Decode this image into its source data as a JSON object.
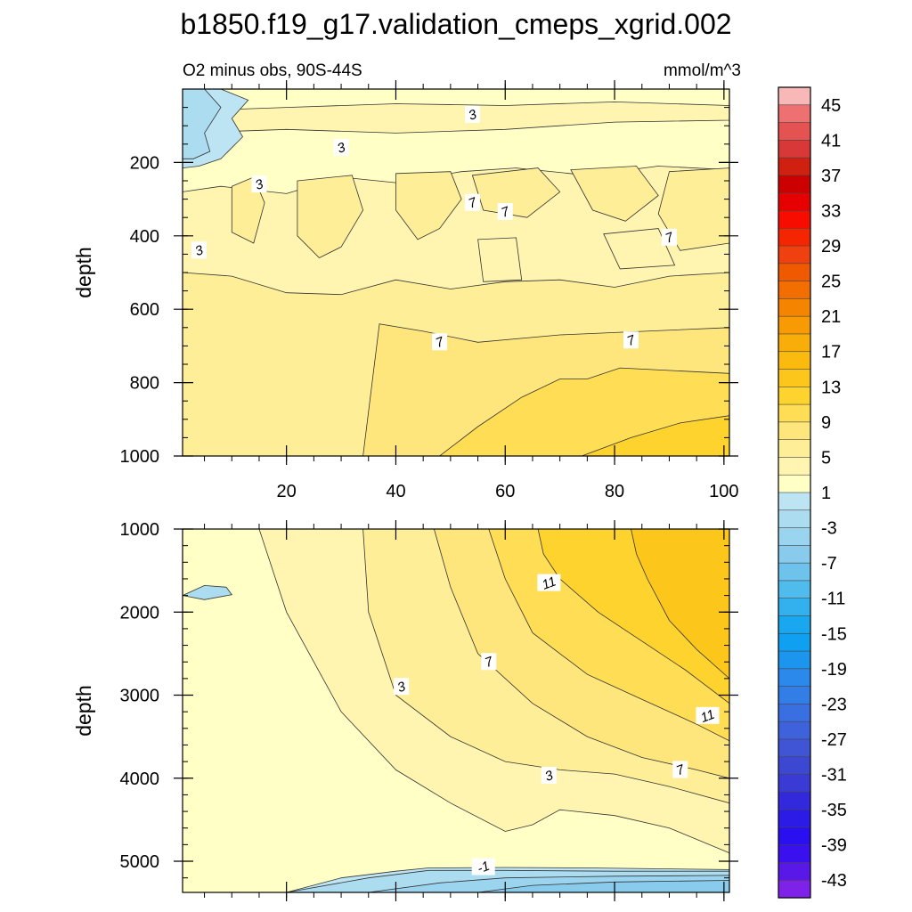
{
  "title": "b1850.f19_g17.validation_cmeps_xgrid.002",
  "colors": {
    "background": "#ffffff",
    "positive_levels": [
      "#ffffc6",
      "#fff5b0",
      "#ffee98",
      "#ffe67c",
      "#ffdd55",
      "#ffd32e",
      "#fcc71a",
      "#fbbb0e",
      "#f9ad08",
      "#f89a04",
      "#f58500",
      "#f26e00",
      "#ef5a00",
      "#f04010",
      "#f52500",
      "#f80c00",
      "#e60000",
      "#cc0000",
      "#d02010",
      "#d83838",
      "#e45252",
      "#ee7070",
      "#f8b8b8"
    ],
    "negative_levels": [
      "#bde4f2",
      "#acdcf0",
      "#9bd4ee",
      "#89cbec",
      "#6ec3ec",
      "#50bbed",
      "#32b1ee",
      "#19a8f0",
      "#0fa0f2",
      "#1b95ee",
      "#2a89ea",
      "#327ee6",
      "#3a6fe2",
      "#3e62dc",
      "#3f55d6",
      "#3c48d2",
      "#3a3ad4",
      "#3329dc",
      "#2c1ae6",
      "#2a10f0",
      "#3a10ee",
      "#5a18e8",
      "#7e22ea"
    ]
  },
  "chart_data": [
    {
      "type": "contour",
      "panel": "upper",
      "left_label": "O2 minus obs, 90S-44S",
      "right_label": "mmol/m^3",
      "xlabel": "",
      "ylabel": "depth",
      "xlim": [
        1,
        101
      ],
      "ylim": [
        0,
        1000
      ],
      "y_inverted": true,
      "x_ticks": [
        20,
        40,
        60,
        80,
        100
      ],
      "y_ticks": [
        200,
        400,
        600,
        800,
        1000
      ],
      "y_minor_step": 50,
      "x_minor_step": 5,
      "grid": false,
      "regions": [
        {
          "level": 1,
          "points": [
            [
              1,
              0
            ],
            [
              101,
              0
            ],
            [
              101,
              1000
            ],
            [
              1,
              1000
            ]
          ]
        },
        {
          "level": 3,
          "points": [
            [
              1,
              280
            ],
            [
              8,
              265
            ],
            [
              20,
              285
            ],
            [
              30,
              240
            ],
            [
              40,
              255
            ],
            [
              52,
              225
            ],
            [
              62,
              215
            ],
            [
              75,
              235
            ],
            [
              88,
              210
            ],
            [
              101,
              220
            ],
            [
              101,
              980
            ],
            [
              1,
              980
            ]
          ]
        },
        {
          "level": 5,
          "points": [
            [
              1,
              500
            ],
            [
              10,
              510
            ],
            [
              20,
              555
            ],
            [
              30,
              560
            ],
            [
              40,
              520
            ],
            [
              50,
              545
            ],
            [
              60,
              525
            ],
            [
              70,
              520
            ],
            [
              80,
              540
            ],
            [
              90,
              510
            ],
            [
              101,
              500
            ],
            [
              101,
              1000
            ],
            [
              1,
              1000
            ]
          ]
        },
        {
          "level": 7,
          "points": [
            [
              34,
              1000
            ],
            [
              37,
              640
            ],
            [
              45,
              660
            ],
            [
              55,
              690
            ],
            [
              70,
              670
            ],
            [
              101,
              650
            ],
            [
              101,
              1000
            ]
          ]
        },
        {
          "level": 9,
          "points": [
            [
              48,
              1000
            ],
            [
              55,
              920
            ],
            [
              63,
              840
            ],
            [
              70,
              790
            ],
            [
              75,
              790
            ],
            [
              81,
              760
            ],
            [
              101,
              775
            ],
            [
              101,
              1000
            ]
          ]
        },
        {
          "level": 11,
          "points": [
            [
              74,
              1000
            ],
            [
              83,
              950
            ],
            [
              92,
              910
            ],
            [
              101,
              890
            ],
            [
              101,
              1000
            ]
          ]
        },
        {
          "level": 5,
          "points": [
            [
              10,
              265
            ],
            [
              14,
              240
            ],
            [
              16,
              310
            ],
            [
              14,
              420
            ],
            [
              10,
              390
            ]
          ]
        },
        {
          "level": 5,
          "points": [
            [
              22,
              250
            ],
            [
              32,
              235
            ],
            [
              34,
              330
            ],
            [
              30,
              430
            ],
            [
              26,
              460
            ],
            [
              22,
              400
            ]
          ]
        },
        {
          "level": 5,
          "points": [
            [
              40,
              230
            ],
            [
              50,
              225
            ],
            [
              52,
              300
            ],
            [
              48,
              380
            ],
            [
              44,
              410
            ],
            [
              40,
              330
            ]
          ]
        },
        {
          "level": 5,
          "points": [
            [
              54,
              235
            ],
            [
              66,
              215
            ],
            [
              70,
              280
            ],
            [
              64,
              350
            ],
            [
              56,
              330
            ]
          ]
        },
        {
          "level": 5,
          "points": [
            [
              72,
              220
            ],
            [
              84,
              210
            ],
            [
              88,
              290
            ],
            [
              82,
              360
            ],
            [
              76,
              330
            ]
          ]
        },
        {
          "level": 5,
          "points": [
            [
              90,
              225
            ],
            [
              101,
              215
            ],
            [
              101,
              420
            ],
            [
              92,
              440
            ],
            [
              88,
              340
            ]
          ]
        },
        {
          "level": 3,
          "points": [
            [
              55,
              410
            ],
            [
              62,
              405
            ],
            [
              63,
              520
            ],
            [
              56,
              525
            ]
          ]
        },
        {
          "level": 3,
          "points": [
            [
              78,
              395
            ],
            [
              88,
              380
            ],
            [
              91,
              480
            ],
            [
              81,
              490
            ]
          ]
        },
        {
          "level": 3,
          "points": [
            [
              1,
              60
            ],
            [
              20,
              50
            ],
            [
              40,
              40
            ],
            [
              60,
              45
            ],
            [
              80,
              35
            ],
            [
              101,
              45
            ],
            [
              101,
              85
            ],
            [
              80,
              90
            ],
            [
              60,
              110
            ],
            [
              40,
              120
            ],
            [
              20,
              110
            ],
            [
              1,
              120
            ]
          ]
        },
        {
          "level": -1,
          "points": [
            [
              1,
              0
            ],
            [
              8,
              0
            ],
            [
              13,
              30
            ],
            [
              10,
              80
            ],
            [
              12,
              130
            ],
            [
              8,
              190
            ],
            [
              4,
              210
            ],
            [
              1,
              215
            ]
          ]
        },
        {
          "level": -3,
          "points": [
            [
              1,
              0
            ],
            [
              5,
              0
            ],
            [
              8,
              50
            ],
            [
              5,
              120
            ],
            [
              6,
              170
            ],
            [
              3,
              190
            ],
            [
              1,
              190
            ]
          ]
        }
      ],
      "contour_labels": [
        {
          "x": 54,
          "y": 70,
          "text": "3"
        },
        {
          "x": 30,
          "y": 160,
          "text": "3"
        },
        {
          "x": 15,
          "y": 260,
          "text": "3"
        },
        {
          "x": 4,
          "y": 440,
          "text": "3"
        },
        {
          "x": 54,
          "y": 310,
          "text": "7"
        },
        {
          "x": 60,
          "y": 335,
          "text": "7"
        },
        {
          "x": 90,
          "y": 405,
          "text": "7"
        },
        {
          "x": 48,
          "y": 690,
          "text": "7"
        },
        {
          "x": 83,
          "y": 685,
          "text": "7"
        }
      ]
    },
    {
      "type": "contour",
      "panel": "lower",
      "xlabel": "",
      "ylabel": "depth",
      "xlim": [
        1,
        101
      ],
      "ylim": [
        1000,
        5375
      ],
      "y_inverted": true,
      "x_ticks": [
        20,
        40,
        60,
        80,
        100
      ],
      "y_ticks": [
        1000,
        2000,
        3000,
        4000,
        5000
      ],
      "y_minor_step": 200,
      "x_minor_step": 5,
      "grid": false,
      "regions": [
        {
          "level": -1,
          "points": [
            [
              1,
              1000
            ],
            [
              101,
              1000
            ],
            [
              101,
              5375
            ],
            [
              1,
              5375
            ]
          ]
        },
        {
          "level": 1,
          "points": [
            [
              1,
              1000
            ],
            [
              101,
              1000
            ],
            [
              101,
              5100
            ],
            [
              75,
              5080
            ],
            [
              60,
              5075
            ],
            [
              46,
              5080
            ],
            [
              40,
              5120
            ],
            [
              30,
              5200
            ],
            [
              20,
              5375
            ],
            [
              1,
              5375
            ]
          ]
        },
        {
          "level": 3,
          "points": [
            [
              15,
              1000
            ],
            [
              101,
              1000
            ],
            [
              101,
              4900
            ],
            [
              90,
              4600
            ],
            [
              80,
              4450
            ],
            [
              70,
              4380
            ],
            [
              65,
              4560
            ],
            [
              60,
              4640
            ],
            [
              50,
              4300
            ],
            [
              40,
              3900
            ],
            [
              30,
              3200
            ],
            [
              20,
              2000
            ]
          ]
        },
        {
          "level": 5,
          "points": [
            [
              34,
              1000
            ],
            [
              101,
              1000
            ],
            [
              101,
              4300
            ],
            [
              90,
              4100
            ],
            [
              80,
              3950
            ],
            [
              70,
              3900
            ],
            [
              60,
              3800
            ],
            [
              50,
              3500
            ],
            [
              40,
              3000
            ],
            [
              35,
              2000
            ]
          ]
        },
        {
          "level": 7,
          "points": [
            [
              47,
              1000
            ],
            [
              101,
              1000
            ],
            [
              101,
              4000
            ],
            [
              95,
              3900
            ],
            [
              85,
              3750
            ],
            [
              75,
              3500
            ],
            [
              65,
              3100
            ],
            [
              55,
              2500
            ],
            [
              50,
              1700
            ]
          ]
        },
        {
          "level": 9,
          "points": [
            [
              57,
              1000
            ],
            [
              101,
              1000
            ],
            [
              101,
              3550
            ],
            [
              95,
              3350
            ],
            [
              85,
              3050
            ],
            [
              75,
              2750
            ],
            [
              65,
              2250
            ],
            [
              60,
              1600
            ]
          ]
        },
        {
          "level": 11,
          "points": [
            [
              66,
              1000
            ],
            [
              101,
              1000
            ],
            [
              101,
              3100
            ],
            [
              93,
              2700
            ],
            [
              85,
              2350
            ],
            [
              77,
              2000
            ],
            [
              70,
              1600
            ],
            [
              67,
              1300
            ]
          ]
        },
        {
          "level": 13,
          "points": [
            [
              83,
              1000
            ],
            [
              101,
              1000
            ],
            [
              101,
              2800
            ],
            [
              95,
              2450
            ],
            [
              90,
              2100
            ],
            [
              86,
              1600
            ],
            [
              84,
              1300
            ]
          ]
        },
        {
          "level": -3,
          "points": [
            [
              1,
              1800
            ],
            [
              5,
              1680
            ],
            [
              9,
              1700
            ],
            [
              10,
              1790
            ],
            [
              5,
              1850
            ]
          ]
        },
        {
          "level": -3,
          "points": [
            [
              20,
              5375
            ],
            [
              35,
              5200
            ],
            [
              46,
              5110
            ],
            [
              60,
              5110
            ],
            [
              80,
              5120
            ],
            [
              101,
              5120
            ],
            [
              101,
              5375
            ]
          ]
        },
        {
          "level": -5,
          "points": [
            [
              35,
              5375
            ],
            [
              48,
              5260
            ],
            [
              60,
              5200
            ],
            [
              80,
              5180
            ],
            [
              101,
              5170
            ],
            [
              101,
              5375
            ]
          ]
        },
        {
          "level": -7,
          "points": [
            [
              55,
              5375
            ],
            [
              65,
              5290
            ],
            [
              80,
              5250
            ],
            [
              101,
              5230
            ],
            [
              101,
              5375
            ]
          ]
        }
      ],
      "contour_labels": [
        {
          "x": 68,
          "y": 1650,
          "text": "11"
        },
        {
          "x": 57,
          "y": 2600,
          "text": "7"
        },
        {
          "x": 41,
          "y": 2900,
          "text": "3"
        },
        {
          "x": 97,
          "y": 3250,
          "text": "11"
        },
        {
          "x": 92,
          "y": 3900,
          "text": "7"
        },
        {
          "x": 68,
          "y": 3970,
          "text": "3"
        },
        {
          "x": 56,
          "y": 5070,
          "text": "-1"
        }
      ]
    }
  ],
  "colorbar": {
    "labels": [
      "45",
      "41",
      "37",
      "33",
      "29",
      "25",
      "21",
      "17",
      "13",
      "9",
      "5",
      "1",
      "-3",
      "-7",
      "-11",
      "-15",
      "-19",
      "-23",
      "-27",
      "-31",
      "-35",
      "-39",
      "-43"
    ]
  }
}
